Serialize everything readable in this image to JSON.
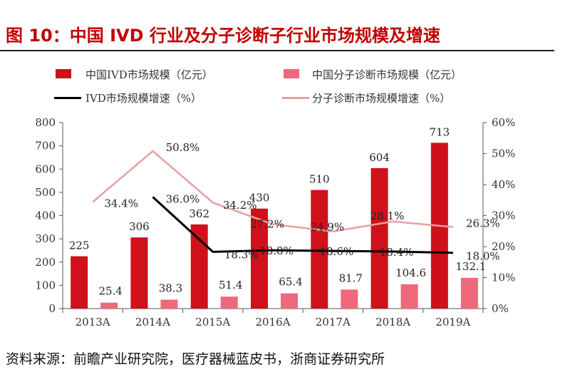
{
  "title": "图 10：中国 IVD 行业及分子诊断子行业市场规模及增速",
  "source": "资料来源：前瞻产业研究院，医疗器械蓝皮书，浙商证券研究所",
  "colors": {
    "ivd_bar": "#d0101a",
    "md_bar": "#f0687a",
    "ivd_line": "#000000",
    "md_line": "#e8a0a0"
  },
  "chart_data": {
    "type": "bar",
    "categories": [
      "2013A",
      "2014A",
      "2015A",
      "2016A",
      "2017A",
      "2018A",
      "2019A"
    ],
    "series": [
      {
        "name": "中国IVD市场规模（亿元）",
        "type": "bar",
        "axis": "left",
        "values": [
          225,
          306,
          362,
          430,
          510,
          604,
          713
        ]
      },
      {
        "name": "中国分子诊断市场规模（亿元）",
        "type": "bar",
        "axis": "left",
        "values": [
          25.4,
          38.3,
          51.4,
          65.4,
          81.7,
          104.6,
          132.1
        ]
      },
      {
        "name": "IVD市场规模增速（%）",
        "type": "line",
        "axis": "right",
        "values": [
          null,
          36.0,
          18.3,
          18.8,
          18.6,
          18.4,
          18.0
        ]
      },
      {
        "name": "分子诊断市场规模增速（%）",
        "type": "line",
        "axis": "right",
        "values": [
          34.4,
          50.8,
          34.2,
          27.2,
          24.9,
          28.1,
          26.3
        ]
      }
    ],
    "left_axis": {
      "min": 0,
      "max": 800,
      "step": 100,
      "ticks": [
        "0",
        "100",
        "200",
        "300",
        "400",
        "500",
        "600",
        "700",
        "800"
      ]
    },
    "right_axis": {
      "min": 0,
      "max": 60,
      "step": 10,
      "ticks": [
        "0%",
        "10%",
        "20%",
        "30%",
        "40%",
        "50%",
        "60%"
      ]
    },
    "legend_position": "top",
    "grid": false
  }
}
